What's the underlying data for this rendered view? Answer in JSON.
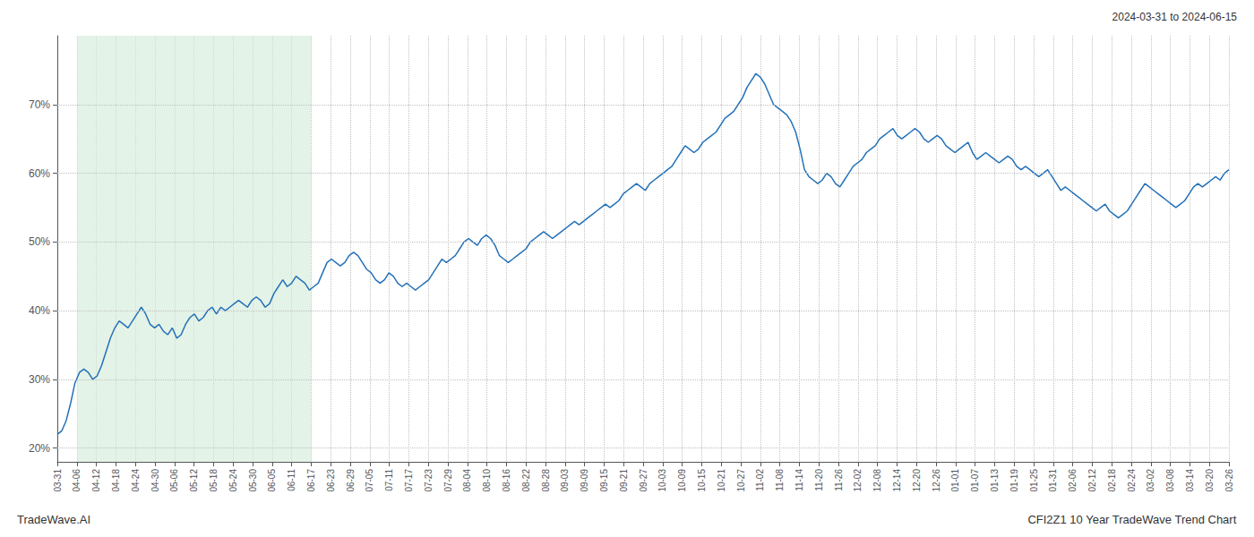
{
  "chart_data": {
    "type": "line",
    "title": "CFI2Z1 10 Year TradeWave Trend Chart",
    "subtitle": "2024-03-31 to 2024-06-15",
    "annotations": [
      "TradeWave.AI"
    ],
    "color": "#2471b8",
    "grid": true,
    "shaded_span": {
      "x": [
        1,
        13
      ],
      "color": "#d4edda"
    },
    "xlim": [
      0,
      60
    ],
    "xticks": [
      {
        "value": 0,
        "label": "03-31"
      },
      {
        "value": 1,
        "label": "04-06"
      },
      {
        "value": 2,
        "label": "04-12"
      },
      {
        "value": 3,
        "label": "04-18"
      },
      {
        "value": 4,
        "label": "04-24"
      },
      {
        "value": 5,
        "label": "04-30"
      },
      {
        "value": 6,
        "label": "05-06"
      },
      {
        "value": 7,
        "label": "05-12"
      },
      {
        "value": 8,
        "label": "05-18"
      },
      {
        "value": 9,
        "label": "05-24"
      },
      {
        "value": 10,
        "label": "05-30"
      },
      {
        "value": 11,
        "label": "06-05"
      },
      {
        "value": 12,
        "label": "06-11"
      },
      {
        "value": 13,
        "label": "06-17"
      },
      {
        "value": 14,
        "label": "06-23"
      },
      {
        "value": 15,
        "label": "06-29"
      },
      {
        "value": 16,
        "label": "07-05"
      },
      {
        "value": 17,
        "label": "07-11"
      },
      {
        "value": 18,
        "label": "07-17"
      },
      {
        "value": 19,
        "label": "07-23"
      },
      {
        "value": 20,
        "label": "07-29"
      },
      {
        "value": 21,
        "label": "08-04"
      },
      {
        "value": 22,
        "label": "08-10"
      },
      {
        "value": 23,
        "label": "08-16"
      },
      {
        "value": 24,
        "label": "08-22"
      },
      {
        "value": 25,
        "label": "08-28"
      },
      {
        "value": 26,
        "label": "09-03"
      },
      {
        "value": 27,
        "label": "09-09"
      },
      {
        "value": 28,
        "label": "09-15"
      },
      {
        "value": 29,
        "label": "09-21"
      },
      {
        "value": 30,
        "label": "09-27"
      },
      {
        "value": 31,
        "label": "10-03"
      },
      {
        "value": 32,
        "label": "10-09"
      },
      {
        "value": 33,
        "label": "10-15"
      },
      {
        "value": 34,
        "label": "10-21"
      },
      {
        "value": 35,
        "label": "10-27"
      },
      {
        "value": 36,
        "label": "11-02"
      },
      {
        "value": 37,
        "label": "11-08"
      },
      {
        "value": 38,
        "label": "11-14"
      },
      {
        "value": 39,
        "label": "11-20"
      },
      {
        "value": 40,
        "label": "11-26"
      },
      {
        "value": 41,
        "label": "12-02"
      },
      {
        "value": 42,
        "label": "12-08"
      },
      {
        "value": 43,
        "label": "12-14"
      },
      {
        "value": 44,
        "label": "12-20"
      },
      {
        "value": 45,
        "label": "12-26"
      },
      {
        "value": 46,
        "label": "01-01"
      },
      {
        "value": 47,
        "label": "01-07"
      },
      {
        "value": 48,
        "label": "01-13"
      },
      {
        "value": 49,
        "label": "01-19"
      },
      {
        "value": 50,
        "label": "01-25"
      },
      {
        "value": 51,
        "label": "01-31"
      },
      {
        "value": 52,
        "label": "02-06"
      },
      {
        "value": 53,
        "label": "02-12"
      },
      {
        "value": 54,
        "label": "02-18"
      },
      {
        "value": 55,
        "label": "02-24"
      },
      {
        "value": 56,
        "label": "03-02"
      },
      {
        "value": 57,
        "label": "03-08"
      },
      {
        "value": 58,
        "label": "03-14"
      },
      {
        "value": 59,
        "label": "03-20"
      },
      {
        "value": 60,
        "label": "03-26"
      }
    ],
    "ylim": [
      18,
      80
    ],
    "yticks": [
      {
        "value": 20,
        "label": "20%"
      },
      {
        "value": 30,
        "label": "30%"
      },
      {
        "value": 40,
        "label": "40%"
      },
      {
        "value": 50,
        "label": "50%"
      },
      {
        "value": 60,
        "label": "60%"
      },
      {
        "value": 70,
        "label": "70%"
      }
    ],
    "x": [
      0,
      0.2264,
      0.4528,
      0.6792,
      0.9057,
      1.1321,
      1.3585,
      1.5849,
      1.8113,
      2.0377,
      2.2642,
      2.4906,
      2.717,
      2.9434,
      3.1698,
      3.3962,
      3.6226,
      3.8491,
      4.0755,
      4.3019,
      4.5283,
      4.7547,
      4.9811,
      5.2075,
      5.434,
      5.6604,
      5.8868,
      6.1132,
      6.3396,
      6.566,
      6.7925,
      7.0189,
      7.2453,
      7.4717,
      7.6981,
      7.9245,
      8.1509,
      8.3774,
      8.6038,
      8.8302,
      9.0566,
      9.283,
      9.5094,
      9.7358,
      9.9623,
      10.1887,
      10.4151,
      10.6415,
      10.8679,
      11.0943,
      11.3208,
      11.5472,
      11.7736,
      12,
      12.2264,
      12.4528,
      12.6792,
      12.9057,
      13.1321,
      13.3585,
      13.5849,
      13.8113,
      14.0377,
      14.2642,
      14.4906,
      14.717,
      14.9434,
      15.1698,
      15.3962,
      15.6226,
      15.8491,
      16.0755,
      16.3019,
      16.5283,
      16.7547,
      16.9811,
      17.2075,
      17.434,
      17.6604,
      17.8868,
      18.1132,
      18.3396,
      18.566,
      18.7925,
      19.0189,
      19.2453,
      19.4717,
      19.6981,
      19.9245,
      20.1509,
      20.3774,
      20.6038,
      20.8302,
      21.0566,
      21.283,
      21.5094,
      21.7358,
      21.9623,
      22.1887,
      22.4151,
      22.6415,
      22.8679,
      23.0943,
      23.3208,
      23.5472,
      23.7736,
      24,
      24.2264,
      24.4528,
      24.6792,
      24.9057,
      25.1321,
      25.3585,
      25.5849,
      25.8113,
      26.0377,
      26.2642,
      26.4906,
      26.717,
      26.9434,
      27.1698,
      27.3962,
      27.6226,
      27.8491,
      28.0755,
      28.3019,
      28.5283,
      28.7547,
      28.9811,
      29.2075,
      29.434,
      29.6604,
      29.8868,
      30.1132,
      30.3396,
      30.566,
      30.7925,
      31.0189,
      31.2453,
      31.4717,
      31.6981,
      31.9245,
      32.1509,
      32.3774,
      32.6038,
      32.8302,
      33.0566,
      33.283,
      33.5094,
      33.7358,
      33.9623,
      34.1887,
      34.4151,
      34.6415,
      34.8679,
      35.0943,
      35.3208,
      35.5472,
      35.7736,
      36,
      36.2264,
      36.4528,
      36.6792,
      36.9057,
      37.1321,
      37.3585,
      37.5849,
      37.8113,
      38.0377,
      38.2642,
      38.4906,
      38.717,
      38.9434,
      39.1698,
      39.3962,
      39.6226,
      39.8491,
      40.0755,
      40.3019,
      40.5283,
      40.7547,
      40.9811,
      41.2075,
      41.434,
      41.6604,
      41.8868,
      42.1132,
      42.3396,
      42.566,
      42.7925,
      43.0189,
      43.2453,
      43.4717,
      43.6981,
      43.9245,
      44.1509,
      44.3774,
      44.6038,
      44.8302,
      45.0566,
      45.283,
      45.5094,
      45.7358,
      45.9623,
      46.1887,
      46.4151,
      46.6415,
      46.8679,
      47.0943,
      47.3208,
      47.5472,
      47.7736,
      48,
      48.2264,
      48.4528,
      48.6792,
      48.9057,
      49.1321,
      49.3585,
      49.5849,
      49.8113,
      50.0377,
      50.2642,
      50.4906,
      50.717,
      50.9434,
      51.1698,
      51.3962,
      51.6226,
      51.8491,
      52.0755,
      52.3019,
      52.5283,
      52.7547,
      52.9811,
      53.2075,
      53.434,
      53.6604,
      53.8868,
      54.1132,
      54.3396,
      54.566,
      54.7925,
      55.0189,
      55.2453,
      55.4717,
      55.6981,
      55.9245,
      56.1509,
      56.3774,
      56.6038,
      56.8302,
      57.0566,
      57.283,
      57.5094,
      57.7358,
      57.9623,
      58.1887,
      58.4151,
      58.6415,
      58.8679,
      59.0943,
      59.3208,
      59.5472,
      59.7736,
      60
    ],
    "values": [
      22.0,
      22.5,
      24.0,
      26.5,
      29.5,
      31.0,
      31.5,
      31.0,
      30.0,
      30.5,
      32.0,
      34.0,
      36.0,
      37.5,
      38.5,
      38.0,
      37.5,
      38.5,
      39.5,
      40.5,
      39.5,
      38.0,
      37.5,
      38.0,
      37.0,
      36.5,
      37.5,
      36.0,
      36.5,
      38.0,
      39.0,
      39.5,
      38.5,
      39.0,
      40.0,
      40.5,
      39.5,
      40.5,
      40.0,
      40.5,
      41.0,
      41.5,
      41.0,
      40.5,
      41.5,
      42.0,
      41.5,
      40.5,
      41.0,
      42.5,
      43.5,
      44.5,
      43.5,
      44.0,
      45.0,
      44.5,
      44.0,
      43.0,
      43.5,
      44.0,
      45.5,
      47.0,
      47.5,
      47.0,
      46.5,
      47.0,
      48.0,
      48.5,
      48.0,
      47.0,
      46.0,
      45.5,
      44.5,
      44.0,
      44.5,
      45.5,
      45.0,
      44.0,
      43.5,
      44.0,
      43.5,
      43.0,
      43.5,
      44.0,
      44.5,
      45.5,
      46.5,
      47.5,
      47.0,
      47.5,
      48.0,
      49.0,
      50.0,
      50.5,
      50.0,
      49.5,
      50.5,
      51.0,
      50.5,
      49.5,
      48.0,
      47.5,
      47.0,
      47.5,
      48.0,
      48.5,
      49.0,
      50.0,
      50.5,
      51.0,
      51.5,
      51.0,
      50.5,
      51.0,
      51.5,
      52.0,
      52.5,
      53.0,
      52.5,
      53.0,
      53.5,
      54.0,
      54.5,
      55.0,
      55.5,
      55.0,
      55.5,
      56.0,
      57.0,
      57.5,
      58.0,
      58.5,
      58.0,
      57.5,
      58.5,
      59.0,
      59.5,
      60.0,
      60.5,
      61.0,
      62.0,
      63.0,
      64.0,
      63.5,
      63.0,
      63.5,
      64.5,
      65.0,
      65.5,
      66.0,
      67.0,
      68.0,
      68.5,
      69.0,
      70.0,
      71.0,
      72.5,
      73.5,
      74.5,
      74.0,
      73.0,
      71.5,
      70.0,
      69.5,
      69.0,
      68.5,
      67.5,
      66.0,
      63.5,
      60.5,
      59.5,
      59.0,
      58.5,
      59.0,
      60.0,
      59.5,
      58.5,
      58.0,
      59.0,
      60.0,
      61.0,
      61.5,
      62.0,
      63.0,
      63.5,
      64.0,
      65.0,
      65.5,
      66.0,
      66.5,
      65.5,
      65.0,
      65.5,
      66.0,
      66.5,
      66.0,
      65.0,
      64.5,
      65.0,
      65.5,
      65.0,
      64.0,
      63.5,
      63.0,
      63.5,
      64.0,
      64.5,
      63.0,
      62.0,
      62.5,
      63.0,
      62.5,
      62.0,
      61.5,
      62.0,
      62.5,
      62.0,
      61.0,
      60.5,
      61.0,
      60.5,
      60.0,
      59.5,
      60.0,
      60.5,
      59.5,
      58.5,
      57.5,
      58.0,
      57.5,
      57.0,
      56.5,
      56.0,
      55.5,
      55.0,
      54.5,
      55.0,
      55.5,
      54.5,
      54.0,
      53.5,
      54.0,
      54.5,
      55.5,
      56.5,
      57.5,
      58.5,
      58.0,
      57.5,
      57.0,
      56.5,
      56.0,
      55.5,
      55.0,
      55.5,
      56.0,
      57.0,
      58.0,
      58.5,
      58.0,
      58.5,
      59.0,
      59.5,
      59.0,
      60.0,
      60.5
    ]
  }
}
